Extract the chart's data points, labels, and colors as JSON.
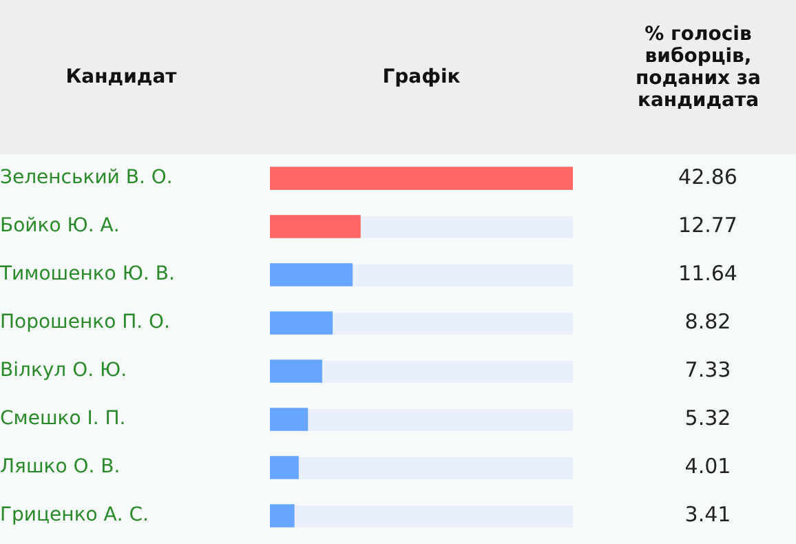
{
  "chart_data": {
    "type": "bar",
    "orientation": "horizontal",
    "annotations": [
      "Кандидат",
      "Графік",
      "% голосів виборців, поданих за кандидата"
    ],
    "categories": [
      "Зеленський В. О.",
      "Бойко Ю. А.",
      "Тимошенко Ю. В.",
      "Порошенко П. О.",
      "Вілкул О. Ю.",
      "Смешко І. П.",
      "Ляшко О. В.",
      "Гриценко А. С."
    ],
    "values": [
      42.86,
      12.77,
      11.64,
      8.82,
      7.33,
      5.32,
      4.01,
      3.41
    ],
    "colors": [
      "#ff6666",
      "#ff6666",
      "#66a6ff",
      "#66a6ff",
      "#66a6ff",
      "#66a6ff",
      "#66a6ff",
      "#66a6ff"
    ],
    "xlim": [
      0,
      42.86
    ],
    "data_labels": true,
    "legend": false,
    "tick_labels": "y"
  }
}
